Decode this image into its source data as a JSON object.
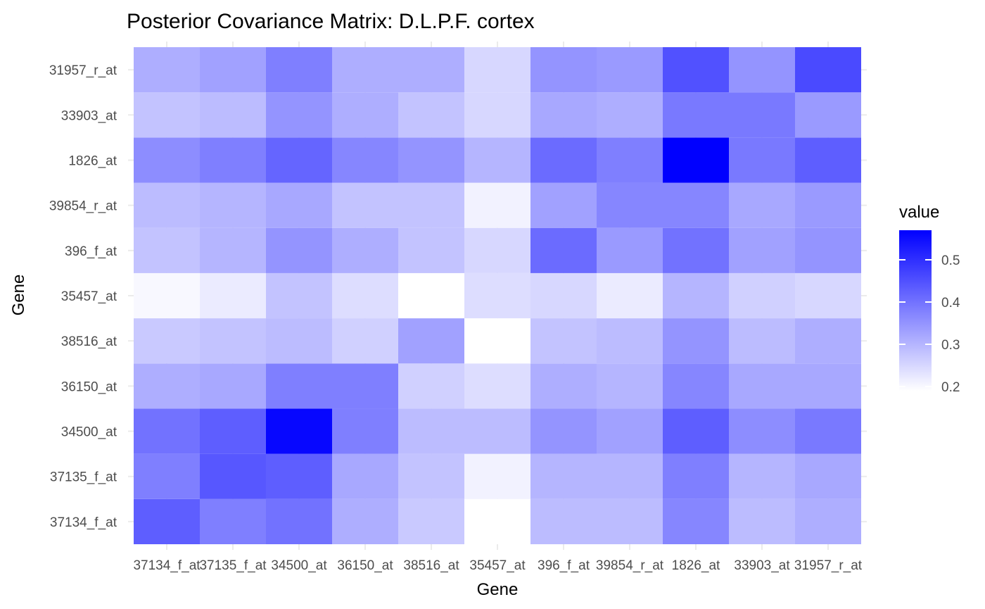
{
  "chart_data": {
    "type": "heatmap",
    "title": "Posterior Covariance Matrix: D.L.P.F. cortex",
    "xlabel": "Gene",
    "ylabel": "Gene",
    "x_categories": [
      "37134_f_at",
      "37135_f_at",
      "34500_at",
      "36150_at",
      "38516_at",
      "35457_at",
      "396_f_at",
      "39854_r_at",
      "1826_at",
      "33903_at",
      "31957_r_at"
    ],
    "y_categories": [
      "37134_f_at",
      "37135_f_at",
      "34500_at",
      "36150_at",
      "38516_at",
      "35457_at",
      "396_f_at",
      "39854_r_at",
      "1826_at",
      "33903_at",
      "31957_r_at"
    ],
    "values": [
      [
        0.43,
        0.38,
        0.4,
        0.31,
        0.27,
        0.18,
        0.29,
        0.29,
        0.37,
        0.29,
        0.31
      ],
      [
        0.38,
        0.44,
        0.43,
        0.32,
        0.28,
        0.21,
        0.3,
        0.3,
        0.38,
        0.3,
        0.32
      ],
      [
        0.4,
        0.43,
        0.56,
        0.38,
        0.29,
        0.29,
        0.35,
        0.33,
        0.43,
        0.36,
        0.39
      ],
      [
        0.31,
        0.32,
        0.38,
        0.38,
        0.26,
        0.24,
        0.31,
        0.3,
        0.37,
        0.32,
        0.32
      ],
      [
        0.27,
        0.28,
        0.29,
        0.26,
        0.33,
        0.18,
        0.28,
        0.29,
        0.35,
        0.29,
        0.31
      ],
      [
        0.2,
        0.22,
        0.28,
        0.24,
        0.19,
        0.24,
        0.25,
        0.22,
        0.3,
        0.26,
        0.25
      ],
      [
        0.28,
        0.3,
        0.35,
        0.31,
        0.28,
        0.25,
        0.41,
        0.34,
        0.4,
        0.33,
        0.35
      ],
      [
        0.29,
        0.3,
        0.32,
        0.28,
        0.28,
        0.21,
        0.33,
        0.37,
        0.37,
        0.32,
        0.34
      ],
      [
        0.36,
        0.38,
        0.42,
        0.37,
        0.35,
        0.3,
        0.41,
        0.38,
        0.57,
        0.39,
        0.43
      ],
      [
        0.28,
        0.29,
        0.35,
        0.31,
        0.28,
        0.25,
        0.32,
        0.31,
        0.39,
        0.39,
        0.34
      ],
      [
        0.31,
        0.33,
        0.38,
        0.31,
        0.31,
        0.25,
        0.35,
        0.34,
        0.45,
        0.35,
        0.46
      ]
    ],
    "scale": {
      "min": 0.19,
      "max": 0.57,
      "low_color": "#ffffff",
      "high_color": "#0000ff"
    },
    "legend": {
      "title": "value",
      "ticks": [
        0.2,
        0.3,
        0.4,
        0.5
      ],
      "position": "right"
    },
    "grid": true
  }
}
